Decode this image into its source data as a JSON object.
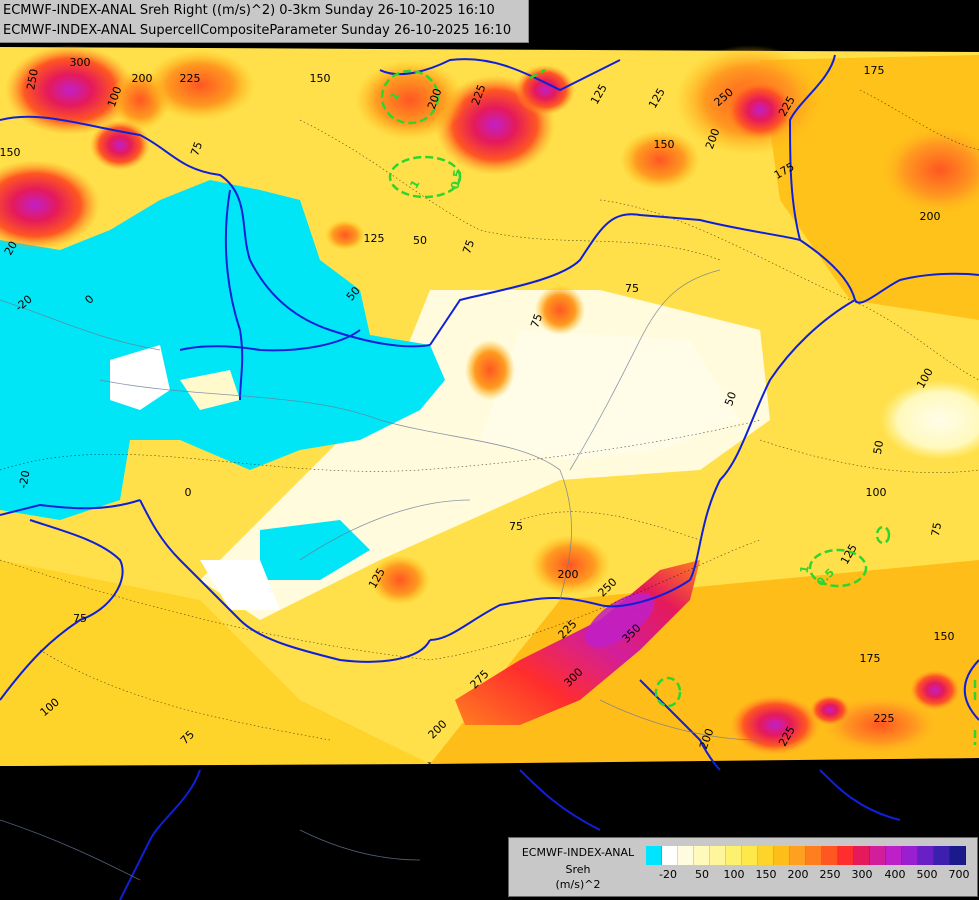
{
  "title": {
    "line1": "ECMWF-INDEX-ANAL Sreh Right ((m/s)^2) 0-3km Sunday 26-10-2025 16:10",
    "line2": "ECMWF-INDEX-ANAL SupercellCompositeParameter Sunday 26-10-2025 16:10"
  },
  "legend": {
    "line1": "ECMWF-INDEX-ANAL",
    "line2": "Sreh",
    "line3": "(m/s)^2",
    "colors": [
      "#00e5ff",
      "#ffffff",
      "#fffbe0",
      "#fff9bc",
      "#fff59a",
      "#fff170",
      "#ffe84a",
      "#ffd42a",
      "#ffbd1a",
      "#ffa020",
      "#ff7f1f",
      "#ff5722",
      "#ff2d2d",
      "#e51a5a",
      "#d21e9a",
      "#bf1fc8",
      "#9a1fd0",
      "#6a1fc6",
      "#3c1fae",
      "#1a1a8a"
    ],
    "ticks": [
      "-20",
      "50",
      "100",
      "150",
      "200",
      "250",
      "300",
      "400",
      "500",
      "700"
    ]
  },
  "contour_labels": [
    "250",
    "300",
    "200",
    "225",
    "150",
    "100",
    "75",
    "200",
    "225",
    "125",
    "125",
    "250",
    "225",
    "150",
    "175",
    "200",
    "175",
    "200",
    "150",
    "50",
    "75",
    "75",
    "50",
    "75",
    "125",
    "0",
    "0",
    "-20",
    "20",
    "-20",
    "75",
    "125",
    "200",
    "250",
    "350",
    "225",
    "300",
    "275",
    "200",
    "200",
    "100",
    "175",
    "150",
    "225",
    "225",
    "50",
    "50",
    "100",
    "75",
    "75",
    "125",
    "75",
    "100",
    "150",
    "150",
    "200",
    "275",
    "250",
    "175",
    "175"
  ],
  "scp_labels": [
    "1",
    "1",
    "0.5",
    "0.5",
    "1"
  ]
}
